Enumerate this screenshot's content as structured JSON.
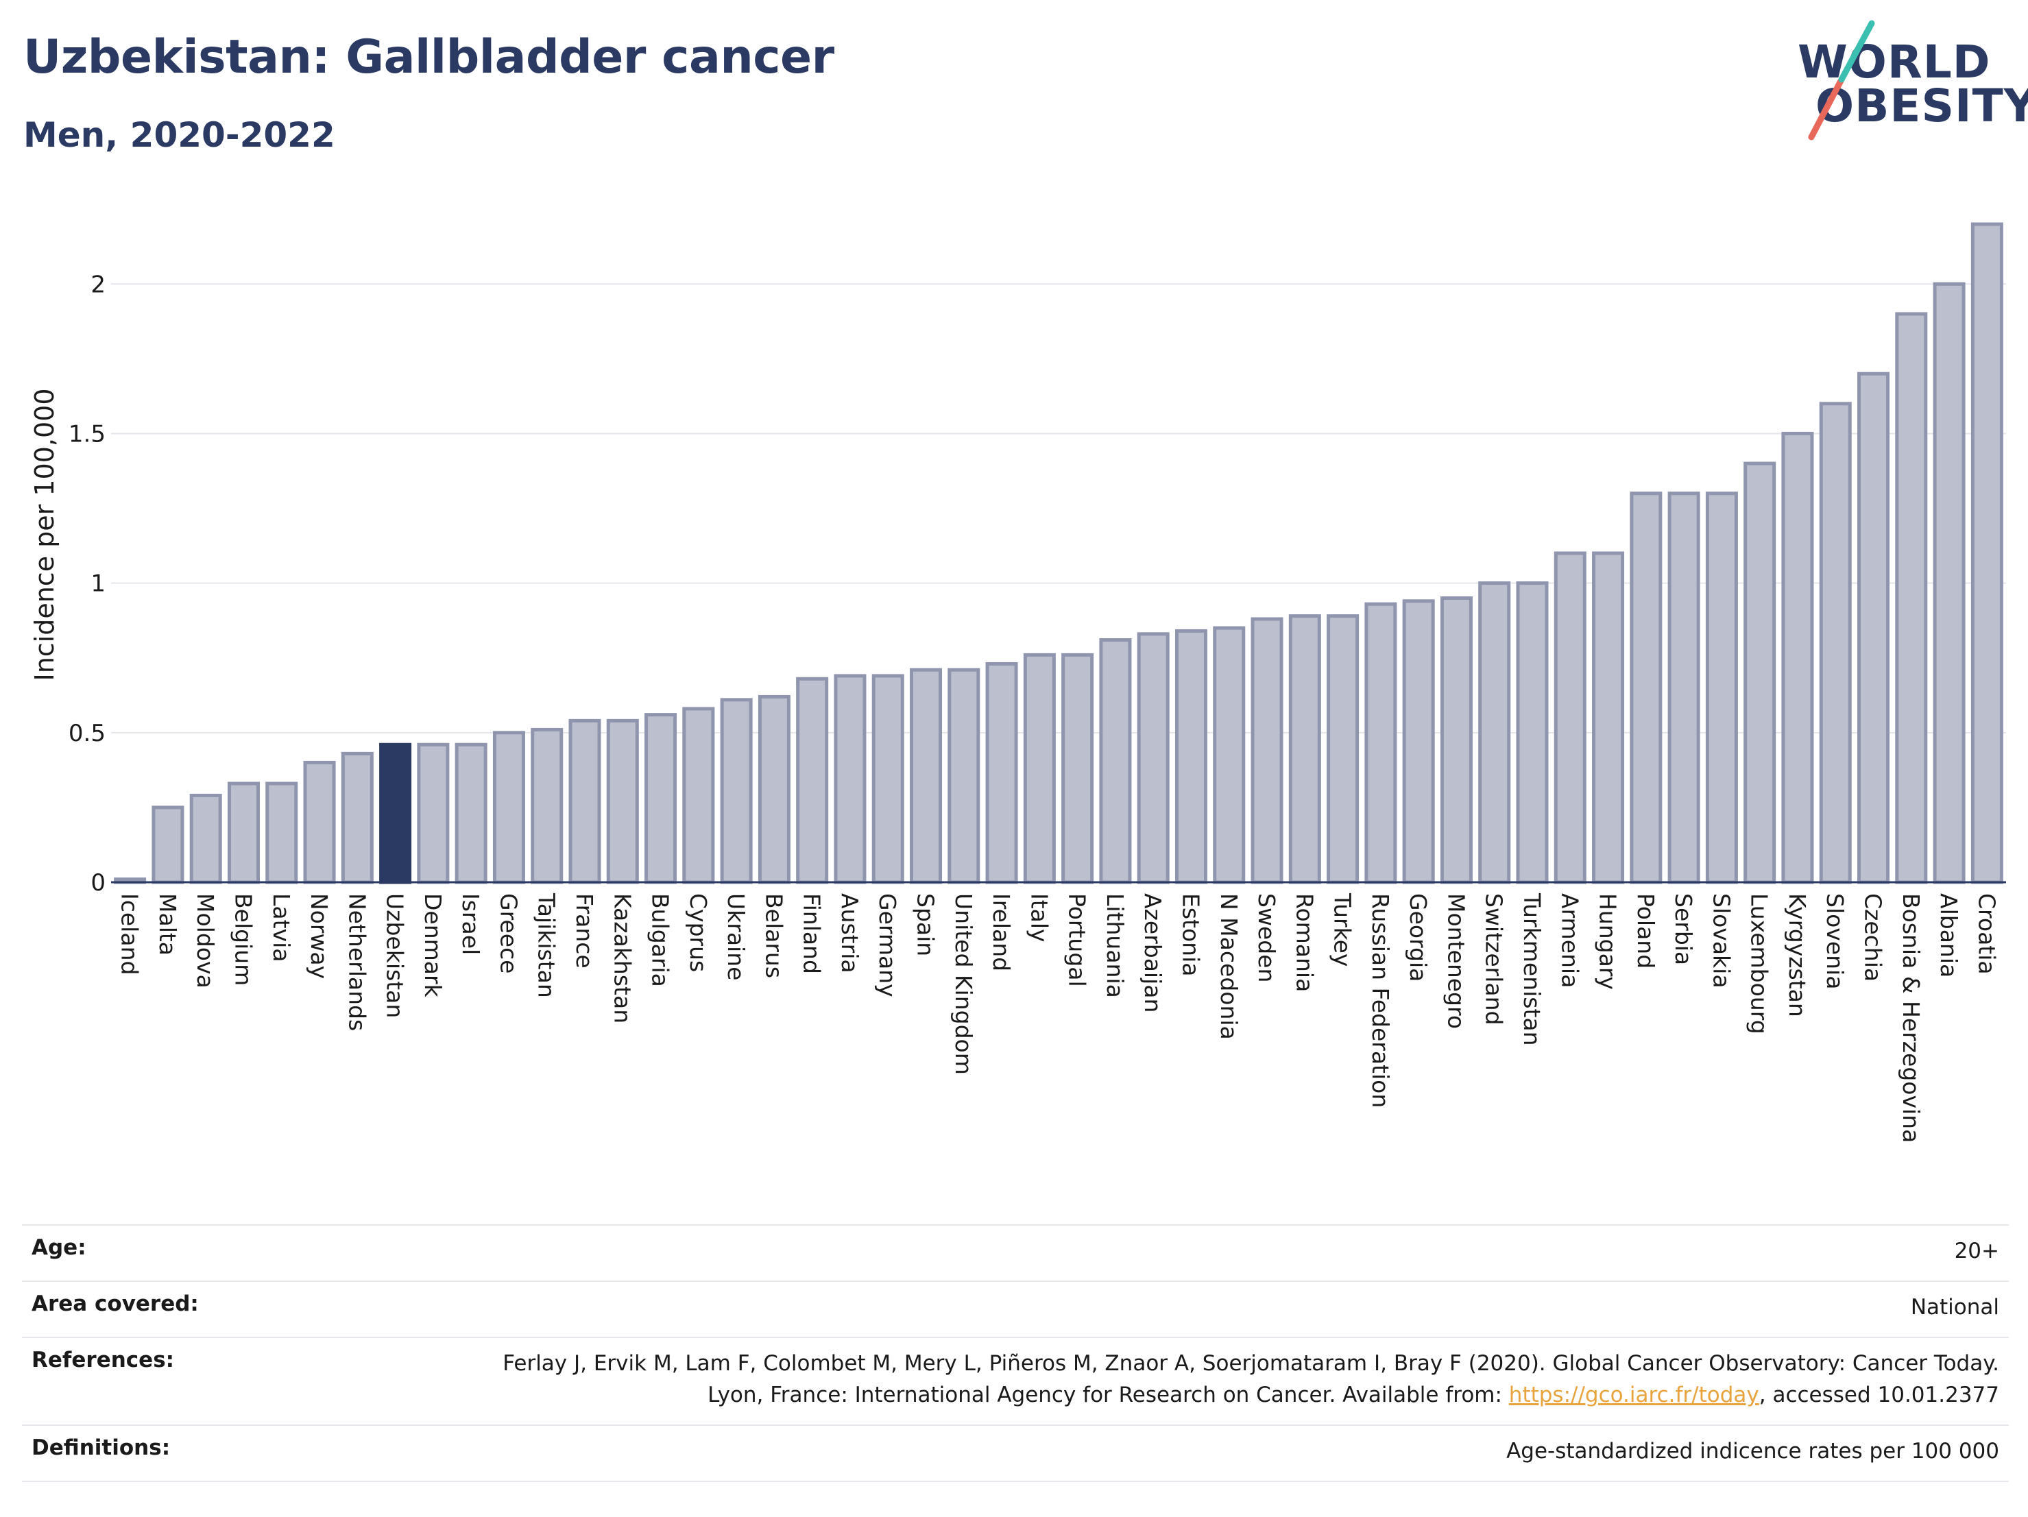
{
  "header": {
    "title": "Uzbekistan: Gallbladder cancer",
    "subtitle": "Men, 2020-2022"
  },
  "logo": {
    "line1": "WORLD",
    "line2": "OBESITY",
    "slash_colors": [
      "#e8695a",
      "#3bbfb0"
    ]
  },
  "chart_data": {
    "type": "bar",
    "ylabel": "Incidence per 100,000",
    "ylim": [
      0,
      2.2
    ],
    "yticks": [
      0,
      0.5,
      1,
      1.5,
      2
    ],
    "ytick_labels": [
      "0",
      "0.5",
      "1",
      "1.5",
      "2"
    ],
    "grid": true,
    "highlight": "Uzbekistan",
    "colors": {
      "bar": "#bcc0ce",
      "bar_edge": "#8e95ad",
      "highlight": "#2b3a63"
    },
    "categories": [
      "Iceland",
      "Malta",
      "Moldova",
      "Belgium",
      "Latvia",
      "Norway",
      "Netherlands",
      "Uzbekistan",
      "Denmark",
      "Israel",
      "Greece",
      "Tajikistan",
      "France",
      "Kazakhstan",
      "Bulgaria",
      "Cyprus",
      "Ukraine",
      "Belarus",
      "Finland",
      "Austria",
      "Germany",
      "Spain",
      "United Kingdom",
      "Ireland",
      "Italy",
      "Portugal",
      "Lithuania",
      "Azerbaijan",
      "Estonia",
      "N Macedonia",
      "Sweden",
      "Romania",
      "Turkey",
      "Russian Federation",
      "Georgia",
      "Montenegro",
      "Switzerland",
      "Turkmenistan",
      "Armenia",
      "Hungary",
      "Poland",
      "Serbia",
      "Slovakia",
      "Luxembourg",
      "Kyrgyzstan",
      "Slovenia",
      "Czechia",
      "Bosnia & Herzegovina",
      "Albania",
      "Croatia"
    ],
    "values": [
      0.01,
      0.25,
      0.29,
      0.33,
      0.33,
      0.4,
      0.43,
      0.46,
      0.46,
      0.46,
      0.5,
      0.51,
      0.54,
      0.54,
      0.56,
      0.58,
      0.61,
      0.62,
      0.68,
      0.69,
      0.69,
      0.71,
      0.71,
      0.73,
      0.76,
      0.76,
      0.81,
      0.83,
      0.84,
      0.85,
      0.88,
      0.89,
      0.89,
      0.93,
      0.94,
      0.95,
      1.0,
      1.0,
      1.1,
      1.1,
      1.3,
      1.3,
      1.3,
      1.4,
      1.5,
      1.6,
      1.7,
      1.9,
      2.0,
      2.2
    ]
  },
  "info": {
    "age_label": "Age:",
    "age_value": "20+",
    "area_label": "Area covered:",
    "area_value": "National",
    "ref_label": "References:",
    "ref_text_before": "Ferlay J, Ervik M, Lam F, Colombet M, Mery L, Piñeros M, Znaor A, Soerjomataram I, Bray F (2020). Global Cancer Observatory: Cancer Today. Lyon, France: International Agency for Research on Cancer. Available from: ",
    "ref_link": "https://gco.iarc.fr/today",
    "ref_text_after": ", accessed 10.01.2377",
    "def_label": "Definitions:",
    "def_value": "Age-standardized indicence rates per 100 000"
  }
}
